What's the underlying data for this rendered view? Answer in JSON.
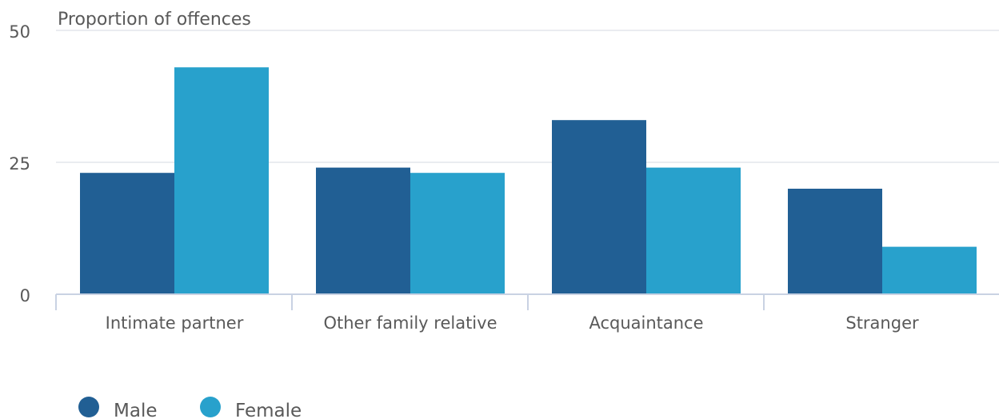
{
  "chart_data": {
    "type": "bar",
    "ylabel": "Proportion of offences",
    "ylim": [
      0,
      50
    ],
    "yticks": [
      0,
      25,
      50
    ],
    "grid": true,
    "legend_placement": "bottom-left",
    "categories": [
      "Intimate partner",
      "Other family relative",
      "Acquaintance",
      "Stranger"
    ],
    "series": [
      {
        "name": "Male",
        "color": "#215f94",
        "values": [
          23,
          24,
          33,
          20
        ]
      },
      {
        "name": "Female",
        "color": "#28a1cc",
        "values": [
          43,
          23,
          24,
          9
        ]
      }
    ]
  }
}
